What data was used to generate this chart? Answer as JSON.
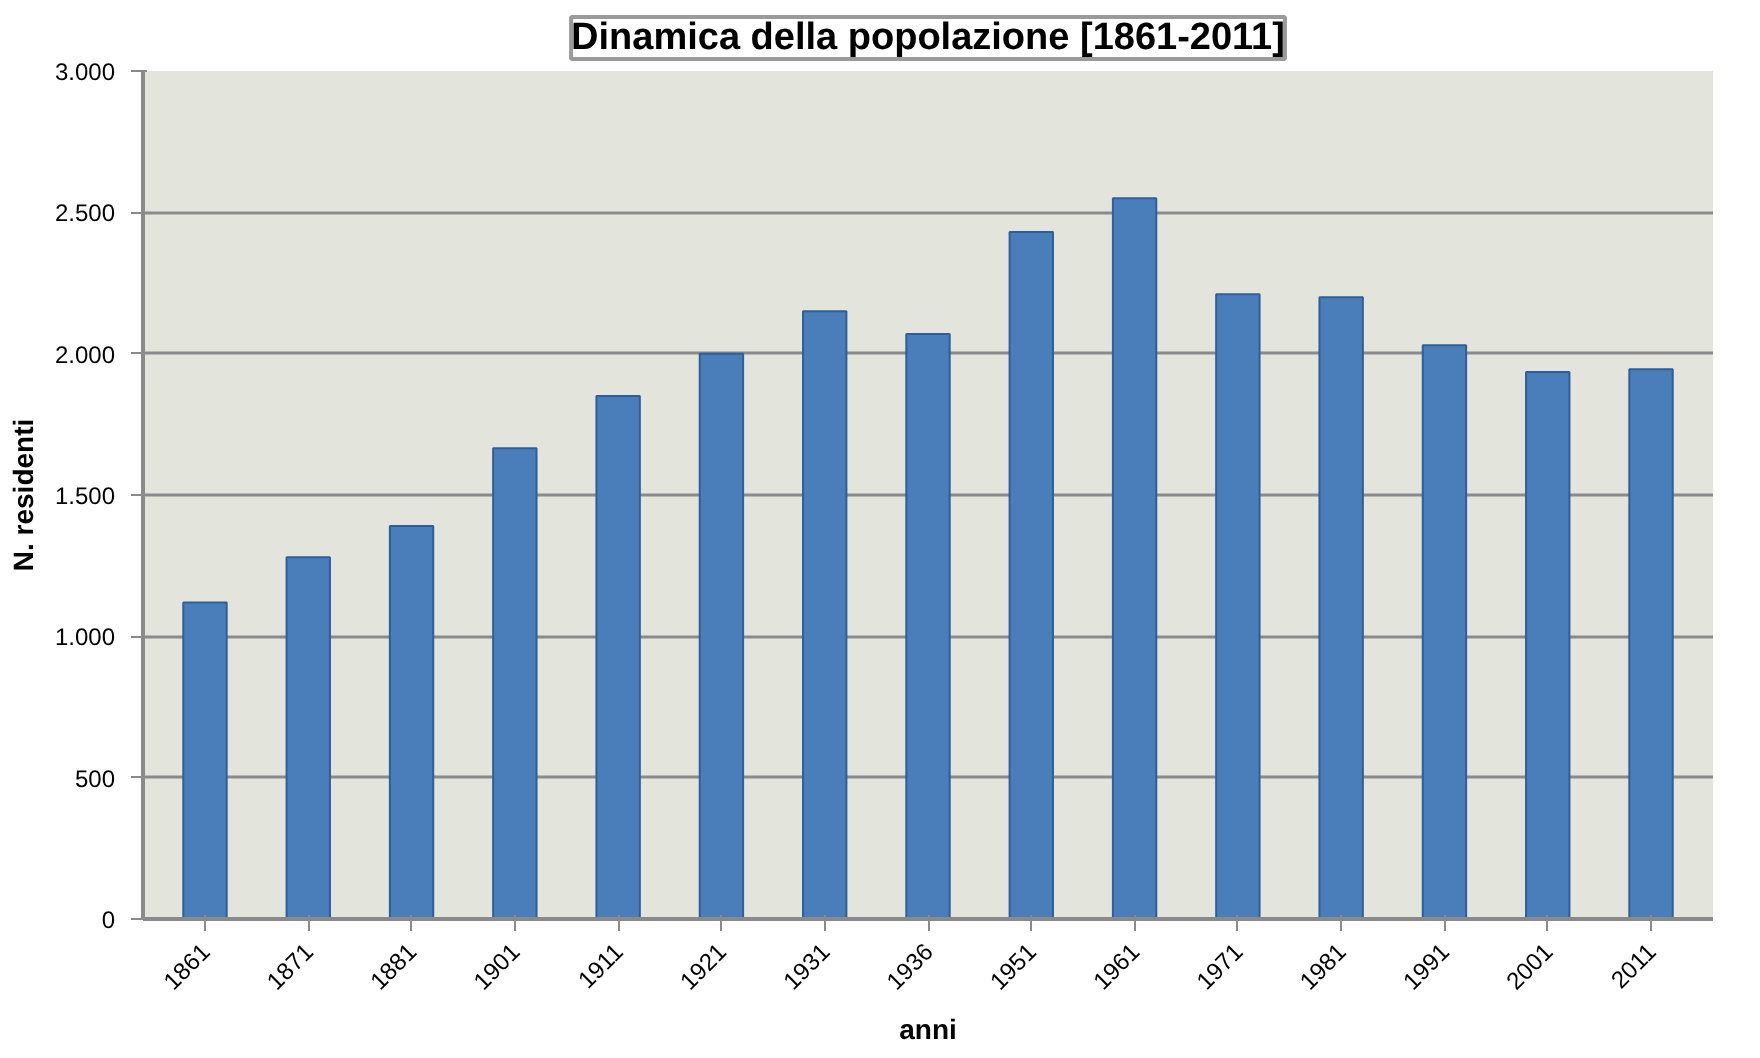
{
  "chart_data": {
    "type": "bar",
    "title": "Dinamica della popolazione [1861-2011]",
    "xlabel": "anni",
    "ylabel": "N. residenti",
    "categories": [
      "1861",
      "1871",
      "1881",
      "1901",
      "1911",
      "1921",
      "1931",
      "1936",
      "1951",
      "1961",
      "1971",
      "1981",
      "1991",
      "2001",
      "2011"
    ],
    "values": [
      1120,
      1280,
      1390,
      1665,
      1850,
      2000,
      2150,
      2070,
      2430,
      2550,
      2210,
      2200,
      2030,
      1935,
      1945
    ],
    "color": "#4a7ebb",
    "ylim": [
      0,
      3000
    ],
    "yticks": [
      0,
      500,
      {
        "value": 1000,
        "label": "1.000"
      },
      {
        "value": 1500,
        "label": "1.500"
      },
      {
        "value": 2000,
        "label": "2.000"
      },
      {
        "value": 2500,
        "label": "2.500"
      },
      {
        "value": 3000,
        "label": "3.000"
      }
    ],
    "grid": "y"
  }
}
